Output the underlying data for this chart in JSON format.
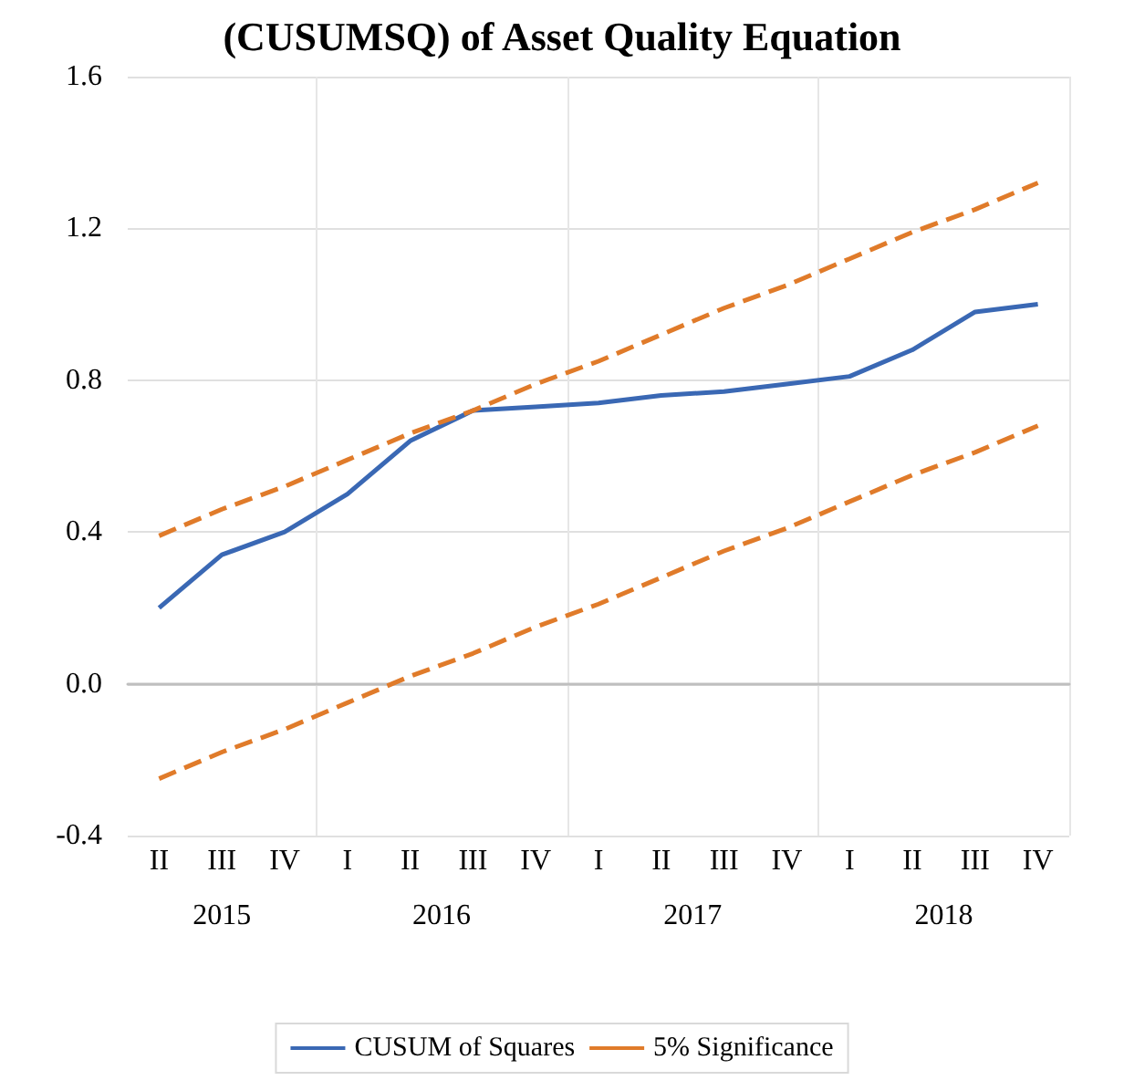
{
  "chart_data": {
    "type": "line",
    "title": "(CUSUMSQ) of Asset Quality Equation",
    "categories": [
      "II",
      "III",
      "IV",
      "I",
      "II",
      "III",
      "IV",
      "I",
      "II",
      "III",
      "IV",
      "I",
      "II",
      "III",
      "IV"
    ],
    "annotations": [
      "2015",
      "2016",
      "2017",
      "2018"
    ],
    "series": [
      {
        "name": "CUSUM of Squares",
        "color": "#3a68b4",
        "line_style": "solid",
        "values": [
          0.2,
          0.34,
          0.4,
          0.5,
          0.64,
          0.72,
          0.73,
          0.74,
          0.76,
          0.77,
          0.79,
          0.81,
          0.88,
          0.98,
          1.0
        ]
      },
      {
        "name": "5% Significance",
        "color": "#e07b2a",
        "line_style": "dashed",
        "values": [
          0.39,
          0.46,
          0.52,
          0.59,
          0.66,
          0.72,
          0.79,
          0.85,
          0.92,
          0.99,
          1.05,
          1.12,
          1.19,
          1.25,
          1.32
        ]
      },
      {
        "color": "#e07b2a",
        "line_style": "dashed",
        "values": [
          -0.25,
          -0.18,
          -0.12,
          -0.05,
          0.02,
          0.08,
          0.15,
          0.21,
          0.28,
          0.35,
          0.41,
          0.48,
          0.55,
          0.61,
          0.68
        ]
      }
    ],
    "ylim": [
      -0.4,
      1.6
    ],
    "yticks": [
      {
        "value": -0.4,
        "label": "-0.4"
      },
      {
        "value": 0,
        "label": "0.0"
      },
      0.4,
      0.8,
      1.2,
      1.6
    ],
    "grid": true,
    "legend": "bottom",
    "marker": "none"
  }
}
